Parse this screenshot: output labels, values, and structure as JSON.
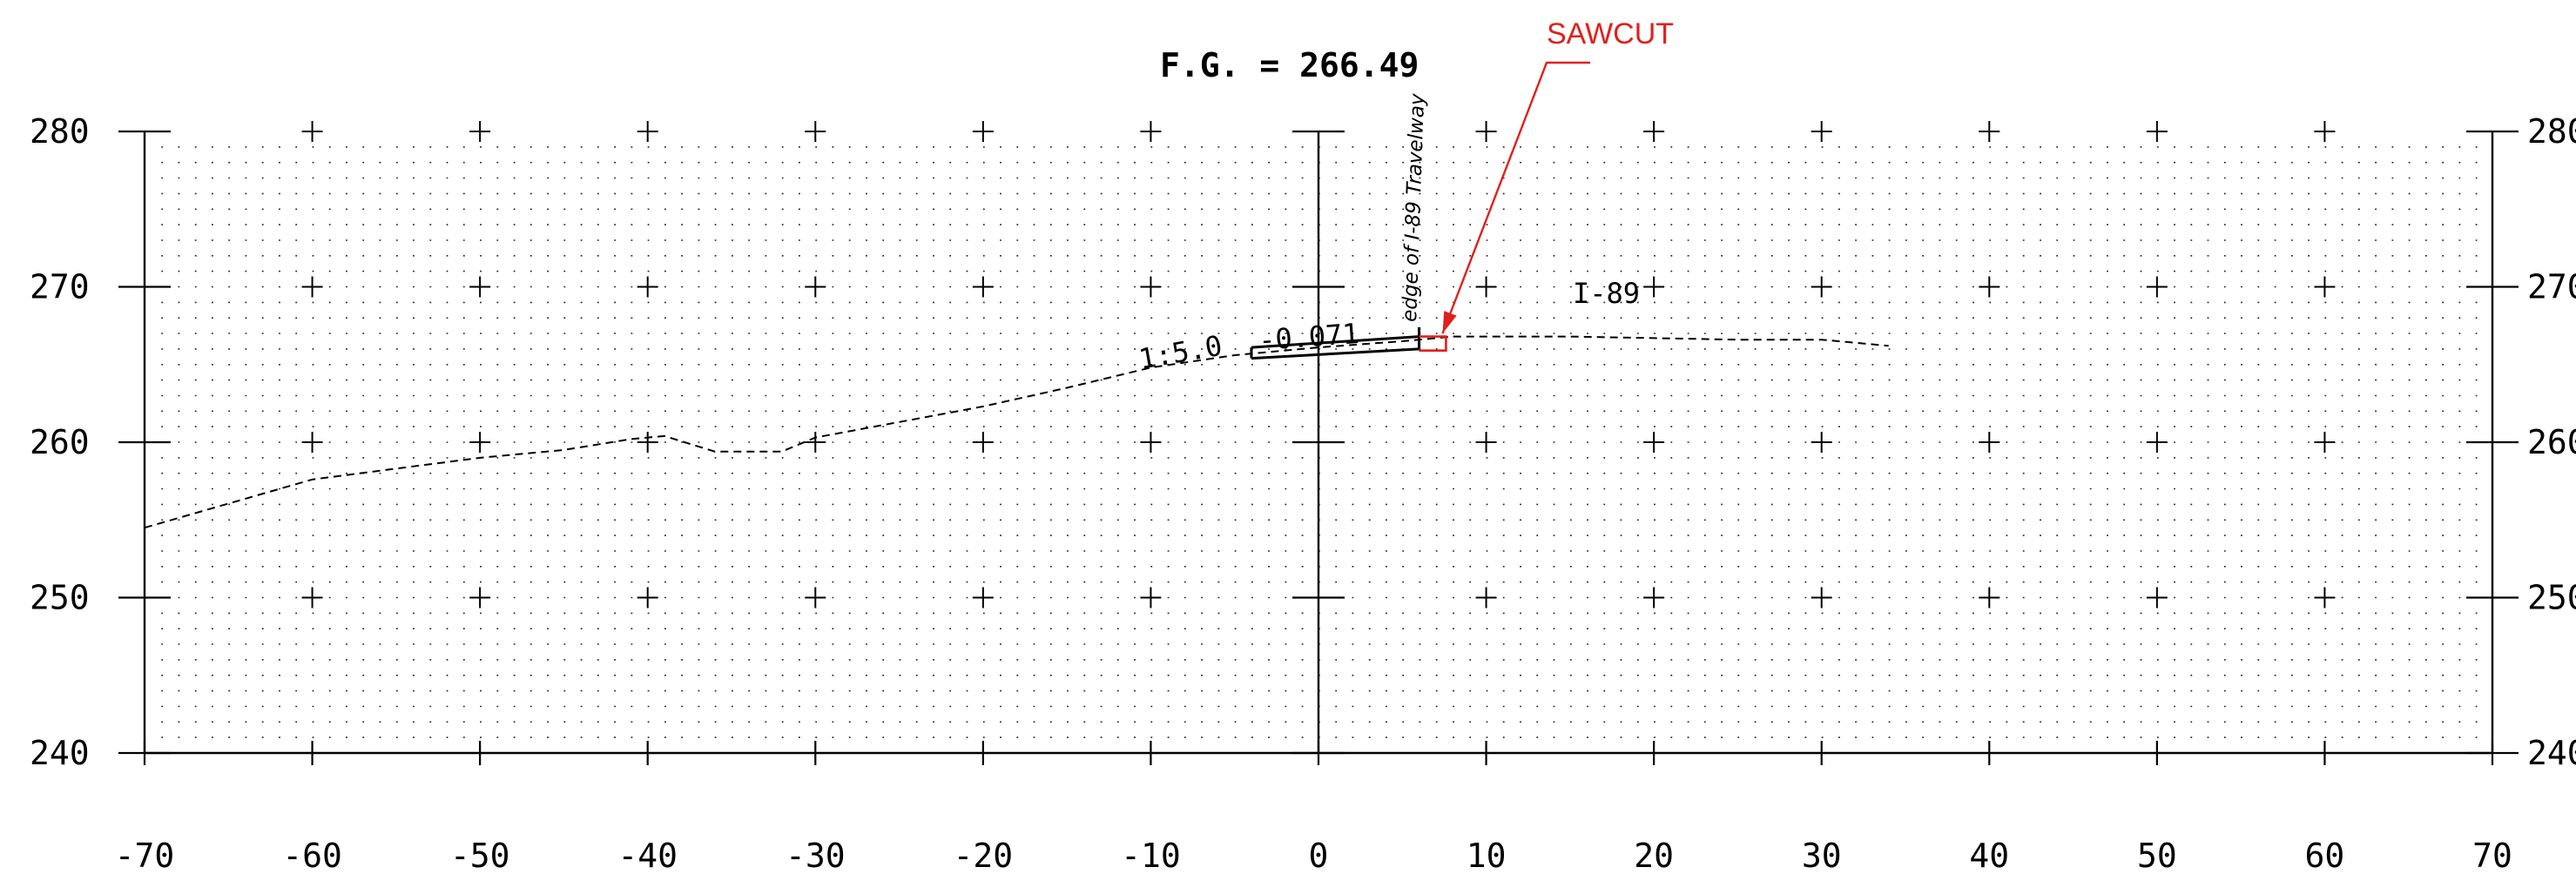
{
  "title": {
    "fg_label": "F.G. = 266.49"
  },
  "annotations": {
    "sawcut": "SAWCUT",
    "edge_label": "edge of I-89 Travelway",
    "road_label": "I-89",
    "slope_label": "1:5.0",
    "grade_label": "-0.071"
  },
  "colors": {
    "ink": "#000000",
    "grid": "#000000",
    "sawcut": "#e0201c"
  },
  "chart_data": {
    "type": "line",
    "x_ticks": [
      -70,
      -60,
      -50,
      -40,
      -30,
      -20,
      -10,
      0,
      10,
      20,
      30,
      40,
      50,
      60,
      70
    ],
    "y_ticks": [
      240,
      250,
      260,
      270,
      280
    ],
    "x_tick_labels": [
      "-70",
      "-60",
      "-50",
      "-40",
      "-30",
      "-20",
      "-10",
      "0",
      "10",
      "20",
      "30",
      "40",
      "50",
      "60",
      "70"
    ],
    "y_tick_labels": [
      "240",
      "250",
      "260",
      "270",
      "280"
    ],
    "xlim": [
      -70,
      70
    ],
    "ylim": [
      240,
      280
    ],
    "grid": true,
    "existing_ground": [
      [
        -70,
        254.5
      ],
      [
        -60,
        257.6
      ],
      [
        -55,
        258.3
      ],
      [
        -50,
        259.0
      ],
      [
        -45,
        259.5
      ],
      [
        -41,
        260.2
      ],
      [
        -39,
        260.4
      ],
      [
        -36,
        259.4
      ],
      [
        -32,
        259.4
      ],
      [
        -30,
        260.3
      ],
      [
        -25,
        261.3
      ],
      [
        -20,
        262.3
      ],
      [
        -15,
        263.5
      ],
      [
        -10,
        264.8
      ],
      [
        -5,
        265.6
      ],
      [
        0,
        266.1
      ],
      [
        5,
        266.5
      ],
      [
        8,
        266.8
      ],
      [
        15,
        266.8
      ],
      [
        20,
        266.7
      ],
      [
        25,
        266.6
      ],
      [
        30,
        266.6
      ],
      [
        34,
        266.2
      ]
    ],
    "proposed_top": [
      [
        -4,
        266.1
      ],
      [
        6,
        266.8
      ]
    ],
    "proposed_bottom": [
      [
        -4,
        265.4
      ],
      [
        6,
        266.0
      ]
    ],
    "sawcut_box": [
      [
        6,
        266.8
      ],
      [
        7.6,
        266.8
      ],
      [
        7.6,
        265.9
      ],
      [
        6,
        265.9
      ]
    ]
  }
}
